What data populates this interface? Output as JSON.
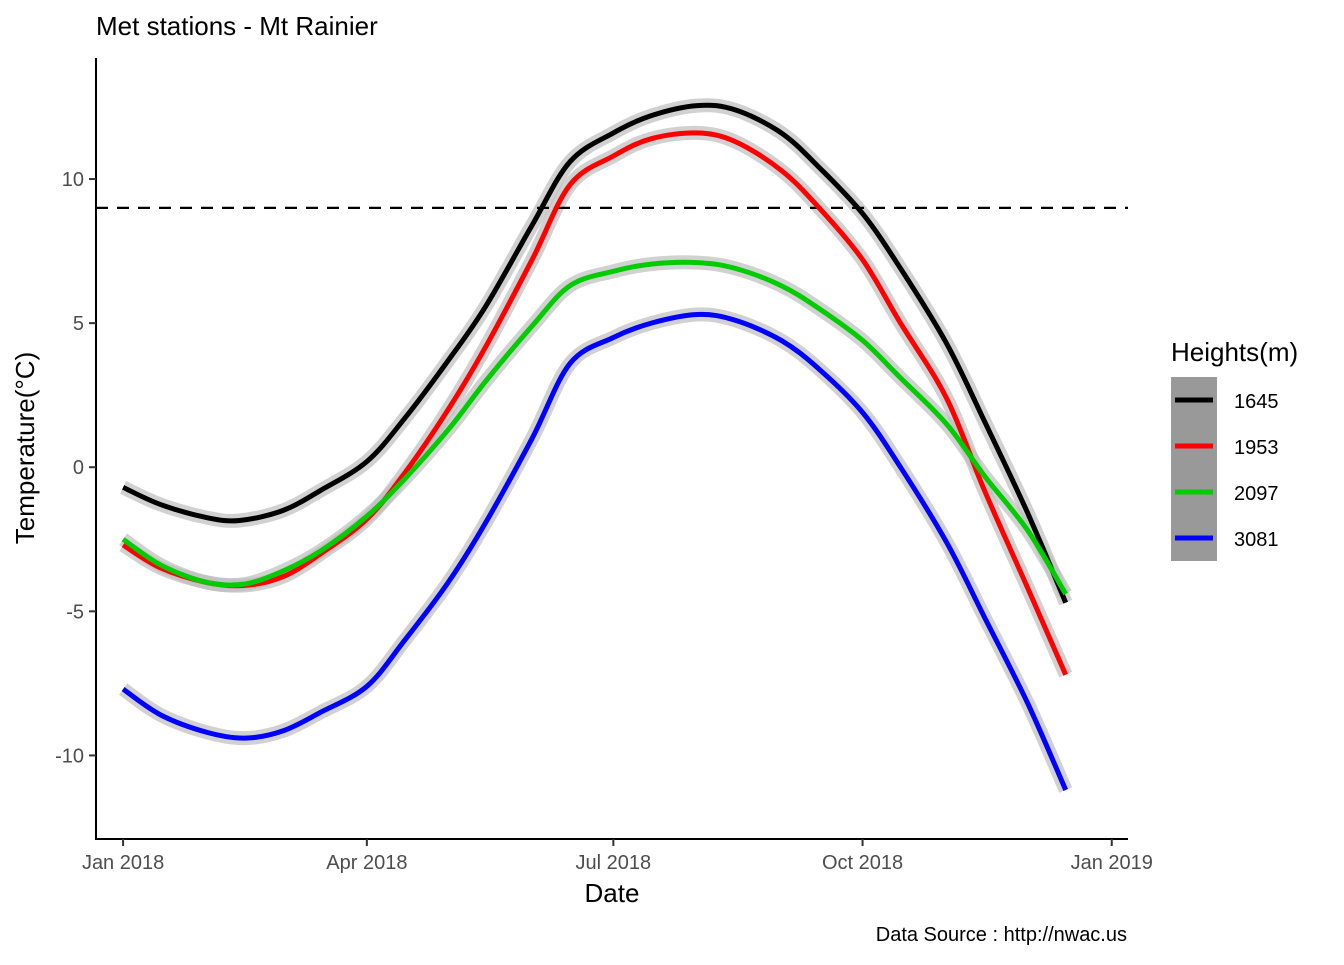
{
  "chart_data": {
    "type": "line",
    "title": "Met stations -  Mt Rainier",
    "xlabel": "Date",
    "ylabel": "Temperature(°C)",
    "caption": "Data Source : http://nwac.us",
    "x_axis": {
      "type": "date",
      "range": [
        "2017-12-22",
        "2019-01-07"
      ],
      "ticks": [
        {
          "date": "2018-01-01",
          "label": "Jan 2018"
        },
        {
          "date": "2018-04-01",
          "label": "Apr 2018"
        },
        {
          "date": "2018-07-01",
          "label": "Jul 2018"
        },
        {
          "date": "2018-10-01",
          "label": "Oct 2018"
        },
        {
          "date": "2019-01-01",
          "label": "Jan 2019"
        }
      ]
    },
    "y_axis": {
      "range": [
        -12.9,
        14.2
      ],
      "ticks": [
        {
          "value": 10,
          "label": "10"
        },
        {
          "value": 5,
          "label": "5"
        },
        {
          "value": 0,
          "label": "0"
        },
        {
          "value": -5,
          "label": "-5"
        },
        {
          "value": -10,
          "label": "-10"
        }
      ]
    },
    "reference_line": {
      "y": 9,
      "style": "dashed",
      "color": "#000000"
    },
    "confidence_band_color": "#bebebe",
    "grid": false,
    "legend": {
      "title": "Heights(m)",
      "position": "right"
    },
    "series": [
      {
        "name": "1645",
        "color": "#000000",
        "points": [
          [
            "2018-01-01",
            -0.7
          ],
          [
            "2018-01-15",
            -1.3
          ],
          [
            "2018-02-01",
            -1.75
          ],
          [
            "2018-02-13",
            -1.85
          ],
          [
            "2018-03-01",
            -1.5
          ],
          [
            "2018-03-15",
            -0.8
          ],
          [
            "2018-04-01",
            0.2
          ],
          [
            "2018-04-15",
            1.7
          ],
          [
            "2018-05-01",
            3.7
          ],
          [
            "2018-05-15",
            5.6
          ],
          [
            "2018-06-01",
            8.4
          ],
          [
            "2018-06-15",
            10.6
          ],
          [
            "2018-07-01",
            11.6
          ],
          [
            "2018-07-15",
            12.2
          ],
          [
            "2018-08-01",
            12.55
          ],
          [
            "2018-08-15",
            12.4
          ],
          [
            "2018-09-01",
            11.6
          ],
          [
            "2018-09-15",
            10.4
          ],
          [
            "2018-10-01",
            8.8
          ],
          [
            "2018-10-15",
            6.9
          ],
          [
            "2018-11-01",
            4.3
          ],
          [
            "2018-11-15",
            1.6
          ],
          [
            "2018-12-01",
            -1.6
          ],
          [
            "2018-12-15",
            -4.7
          ]
        ]
      },
      {
        "name": "1953",
        "color": "#ff0000",
        "points": [
          [
            "2018-01-01",
            -2.7
          ],
          [
            "2018-01-15",
            -3.5
          ],
          [
            "2018-02-01",
            -4.0
          ],
          [
            "2018-02-15",
            -4.1
          ],
          [
            "2018-03-01",
            -3.8
          ],
          [
            "2018-03-15",
            -3.0
          ],
          [
            "2018-04-01",
            -1.8
          ],
          [
            "2018-04-15",
            -0.2
          ],
          [
            "2018-05-01",
            2.0
          ],
          [
            "2018-05-15",
            4.2
          ],
          [
            "2018-06-01",
            7.2
          ],
          [
            "2018-06-15",
            9.8
          ],
          [
            "2018-07-01",
            10.8
          ],
          [
            "2018-07-15",
            11.4
          ],
          [
            "2018-08-01",
            11.6
          ],
          [
            "2018-08-15",
            11.3
          ],
          [
            "2018-09-01",
            10.3
          ],
          [
            "2018-09-15",
            9.0
          ],
          [
            "2018-10-01",
            7.2
          ],
          [
            "2018-10-15",
            5.0
          ],
          [
            "2018-11-01",
            2.4
          ],
          [
            "2018-11-15",
            -0.8
          ],
          [
            "2018-12-01",
            -4.2
          ],
          [
            "2018-12-15",
            -7.2
          ]
        ]
      },
      {
        "name": "2097",
        "color": "#00cd00",
        "points": [
          [
            "2018-01-01",
            -2.5
          ],
          [
            "2018-01-15",
            -3.4
          ],
          [
            "2018-02-01",
            -4.0
          ],
          [
            "2018-02-15",
            -4.05
          ],
          [
            "2018-03-01",
            -3.6
          ],
          [
            "2018-03-15",
            -2.9
          ],
          [
            "2018-04-01",
            -1.7
          ],
          [
            "2018-04-15",
            -0.4
          ],
          [
            "2018-05-01",
            1.3
          ],
          [
            "2018-05-15",
            3.0
          ],
          [
            "2018-06-01",
            4.9
          ],
          [
            "2018-06-15",
            6.3
          ],
          [
            "2018-07-01",
            6.8
          ],
          [
            "2018-07-15",
            7.05
          ],
          [
            "2018-08-01",
            7.1
          ],
          [
            "2018-08-15",
            6.9
          ],
          [
            "2018-09-01",
            6.3
          ],
          [
            "2018-09-15",
            5.5
          ],
          [
            "2018-10-01",
            4.4
          ],
          [
            "2018-10-15",
            3.1
          ],
          [
            "2018-11-01",
            1.5
          ],
          [
            "2018-11-15",
            -0.3
          ],
          [
            "2018-12-01",
            -2.2
          ],
          [
            "2018-12-15",
            -4.4
          ]
        ]
      },
      {
        "name": "3081",
        "color": "#0000ff",
        "points": [
          [
            "2018-01-01",
            -7.7
          ],
          [
            "2018-01-15",
            -8.6
          ],
          [
            "2018-02-01",
            -9.2
          ],
          [
            "2018-02-15",
            -9.4
          ],
          [
            "2018-03-01",
            -9.15
          ],
          [
            "2018-03-15",
            -8.5
          ],
          [
            "2018-04-01",
            -7.6
          ],
          [
            "2018-04-15",
            -6.0
          ],
          [
            "2018-05-01",
            -4.0
          ],
          [
            "2018-05-15",
            -1.9
          ],
          [
            "2018-06-01",
            1.0
          ],
          [
            "2018-06-15",
            3.6
          ],
          [
            "2018-07-01",
            4.5
          ],
          [
            "2018-07-15",
            5.0
          ],
          [
            "2018-08-01",
            5.3
          ],
          [
            "2018-08-15",
            5.1
          ],
          [
            "2018-09-01",
            4.4
          ],
          [
            "2018-09-15",
            3.4
          ],
          [
            "2018-10-01",
            1.9
          ],
          [
            "2018-10-15",
            0.0
          ],
          [
            "2018-11-01",
            -2.6
          ],
          [
            "2018-11-15",
            -5.2
          ],
          [
            "2018-12-01",
            -8.2
          ],
          [
            "2018-12-15",
            -11.2
          ]
        ]
      }
    ]
  }
}
